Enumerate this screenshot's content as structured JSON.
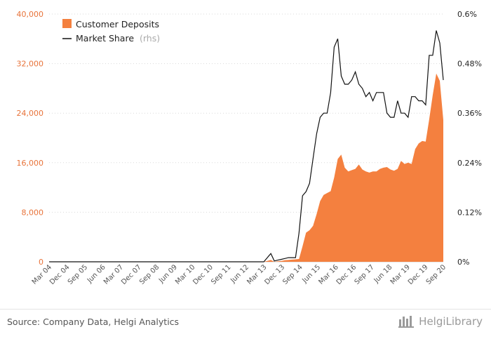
{
  "chart_data": {
    "type": "area+line",
    "x_labels": [
      "Mar 04",
      "Dec 04",
      "Sep 05",
      "Jun 06",
      "Mar 07",
      "Dec 07",
      "Sep 08",
      "Jun 09",
      "Mar 10",
      "Dec 10",
      "Sep 11",
      "Jun 12",
      "Mar 13",
      "Dec 13",
      "Sep 14",
      "Jun 15",
      "Mar 16",
      "Dec 16",
      "Sep 17",
      "Jun 18",
      "Mar 19",
      "Dec 19",
      "Sep 20"
    ],
    "left_axis": {
      "ticks": [
        "0",
        "8,000",
        "16,000",
        "24,000",
        "32,000",
        "40,000"
      ],
      "ylim": [
        0,
        40000
      ]
    },
    "right_axis": {
      "ticks": [
        "0%",
        "0.12%",
        "0.24%",
        "0.36%",
        "0.48%",
        "0.6%"
      ],
      "ylim": [
        0,
        0.006
      ]
    },
    "series": [
      {
        "name": "Customer Deposits",
        "axis": "left",
        "color": "#f4803f",
        "values": [
          0,
          0,
          0,
          0,
          0,
          0,
          0,
          0,
          0,
          0,
          0,
          0,
          0,
          0,
          0,
          0,
          0,
          0,
          0,
          0,
          0,
          0,
          0,
          0,
          0,
          0,
          0,
          0,
          0,
          0,
          0,
          0,
          0,
          0,
          0,
          0,
          0,
          0,
          0,
          0,
          0,
          0,
          0,
          0,
          0,
          0,
          0,
          0,
          0,
          0,
          0,
          0,
          0,
          0,
          0,
          0,
          0,
          0,
          0,
          0,
          0,
          0,
          150,
          300,
          0,
          80,
          150,
          250,
          300,
          350,
          400,
          450,
          2500,
          4700,
          5100,
          5800,
          7700,
          9800,
          10800,
          11100,
          11400,
          13600,
          16600,
          17300,
          15200,
          14600,
          14800,
          15000,
          15700,
          14900,
          14600,
          14400,
          14600,
          14600,
          15000,
          15200,
          15300,
          14900,
          14700,
          15000,
          16300,
          15800,
          16000,
          15800,
          18200,
          19100,
          19500,
          19400,
          23000,
          26900,
          30400,
          29200,
          22900
        ]
      },
      {
        "name": "Market Share",
        "label_suffix": "(rhs)",
        "axis": "right",
        "color": "#111111",
        "values": [
          0,
          0,
          0,
          0,
          0,
          0,
          0,
          0,
          0,
          0,
          0,
          0,
          0,
          0,
          0,
          0,
          0,
          0,
          0,
          0,
          0,
          0,
          0,
          0,
          0,
          0,
          0,
          0,
          0,
          0,
          0,
          0,
          0,
          0,
          0,
          0,
          0,
          0,
          0,
          0,
          0,
          0,
          0,
          0,
          0,
          0,
          0,
          0,
          0,
          0,
          0,
          0,
          0,
          0,
          0,
          0,
          0,
          0,
          0,
          0,
          0,
          0,
          0.0001,
          0.0002,
          2e-05,
          4e-05,
          6e-05,
          8e-05,
          0.0001,
          0.0001,
          0.0001,
          0.0007,
          0.0016,
          0.0017,
          0.0019,
          0.0025,
          0.0031,
          0.0035,
          0.0036,
          0.0036,
          0.0041,
          0.0052,
          0.0054,
          0.0045,
          0.0043,
          0.0043,
          0.0044,
          0.0046,
          0.0043,
          0.0042,
          0.004,
          0.0041,
          0.0039,
          0.0041,
          0.0041,
          0.0041,
          0.0036,
          0.0035,
          0.0035,
          0.0039,
          0.0036,
          0.0036,
          0.0035,
          0.004,
          0.004,
          0.0039,
          0.0039,
          0.0038,
          0.005,
          0.005,
          0.0056,
          0.0053,
          0.0044
        ]
      }
    ],
    "legend_position": "top-left",
    "grid": "horizontal dotted"
  },
  "footer": {
    "source": "Source: Company Data, Helgi Analytics",
    "brand": "HelgiLibrary"
  }
}
